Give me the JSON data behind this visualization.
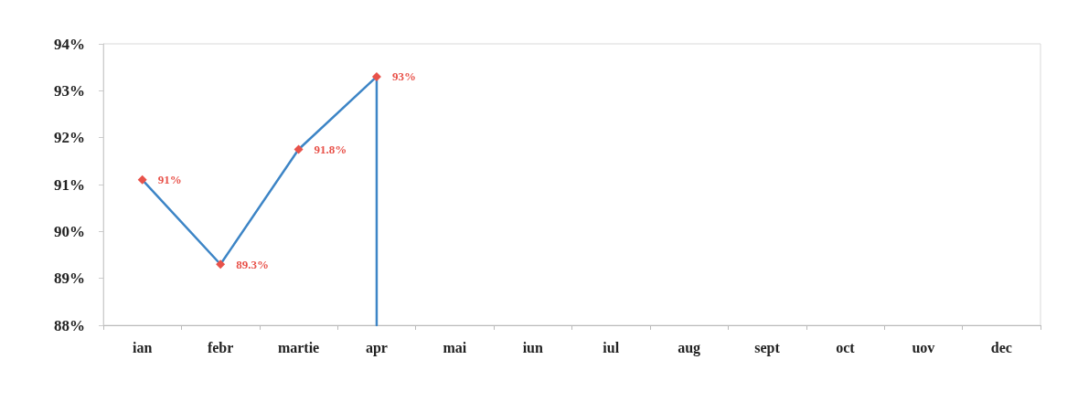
{
  "chart_data": {
    "type": "line",
    "categories": [
      "ian",
      "febr",
      "martie",
      "apr",
      "mai",
      "iun",
      "iul",
      "aug",
      "sept",
      "oct",
      "uov",
      "dec"
    ],
    "series": [
      {
        "color": "#3d85c6",
        "colors": [
          "#e8524a",
          "#e8524a",
          "#e8524a",
          "#e8524a",
          null,
          null,
          null,
          null,
          null,
          null,
          null,
          null
        ],
        "values": [
          91.1,
          89.3,
          91.75,
          93.3,
          null,
          null,
          null,
          null,
          null,
          null,
          null,
          null
        ],
        "value_labels": [
          "91%",
          "89.3%",
          "91.8%",
          "93%",
          null,
          null,
          null,
          null,
          null,
          null,
          null,
          null
        ],
        "marker": "diamond"
      },
      {
        "color": "#3d85c6",
        "x": [
          "apr",
          "apr"
        ],
        "values": [
          93.3,
          88
        ],
        "marker": "none"
      }
    ],
    "ylim": [
      88,
      94
    ],
    "yticks": [
      {
        "value": 88,
        "label": "88%"
      },
      {
        "value": 89,
        "label": "89%"
      },
      {
        "value": 90,
        "label": "90%"
      },
      {
        "value": 91,
        "label": "91%"
      },
      {
        "value": 92,
        "label": "92%"
      },
      {
        "value": 93,
        "label": "93%"
      },
      {
        "value": 94,
        "label": "94%"
      }
    ],
    "grid": false
  }
}
